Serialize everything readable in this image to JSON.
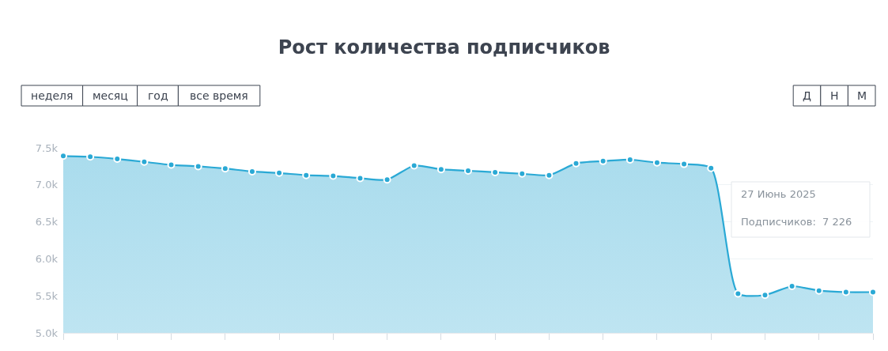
{
  "chart_data": {
    "type": "area",
    "title": "Рост количества подписчиков",
    "categories": [
      null,
      null,
      null,
      null,
      null,
      null,
      null,
      null,
      null,
      null,
      null,
      null,
      null,
      null,
      null,
      null,
      null,
      null,
      null,
      null,
      null,
      null,
      null,
      null,
      null,
      null,
      null,
      null,
      null,
      null,
      null
    ],
    "series": [
      {
        "color": "#2aa9d5",
        "values": [
          7390,
          7380,
          7350,
          7310,
          7270,
          7250,
          7220,
          7180,
          7160,
          7130,
          7120,
          7090,
          7070,
          7260,
          7210,
          7190,
          7170,
          7150,
          7130,
          7290,
          7320,
          7340,
          7300,
          7280,
          7226,
          5530,
          5510,
          5630,
          5570,
          5550,
          5550
        ]
      }
    ],
    "ylim": [
      5000,
      7500
    ],
    "yticks": [
      {
        "value": 5000,
        "label": "5.0k"
      },
      {
        "value": 5500,
        "label": "5.5k"
      },
      {
        "value": 6000,
        "label": "6.0k"
      },
      {
        "value": 6500,
        "label": "6.5k"
      },
      {
        "value": 7000,
        "label": "7.0k"
      },
      {
        "value": 7500,
        "label": "7.5k"
      }
    ],
    "grid": "y",
    "marker": "circle",
    "annotations": [
      "27 Июнь 2025",
      "Подписчиков:  7 226",
      "неделя",
      "месяц",
      "год",
      "все время",
      "Д",
      "Н",
      "М"
    ]
  }
}
